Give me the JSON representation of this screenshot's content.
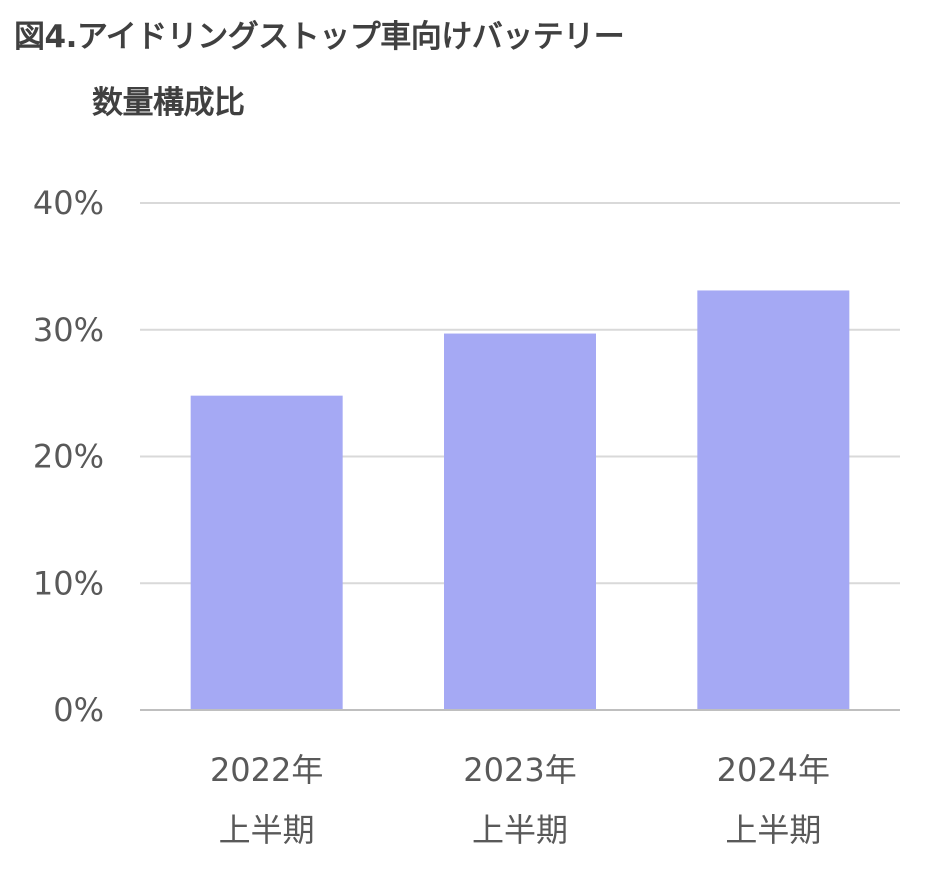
{
  "chart_data": {
    "type": "bar",
    "title": "図4.アイドリングストップ車向けバッテリー",
    "subtitle": "数量構成比",
    "categories": [
      [
        "2022年",
        "上半期"
      ],
      [
        "2023年",
        "上半期"
      ],
      [
        "2024年",
        "上半期"
      ]
    ],
    "values": [
      24.8,
      29.7,
      33.1
    ],
    "unit": "%",
    "ylim": [
      0,
      40
    ],
    "yticks": [
      0,
      10,
      20,
      30,
      40
    ],
    "ytick_labels": [
      "0%",
      "10%",
      "20%",
      "30%",
      "40%"
    ],
    "grid": true,
    "legend": "none",
    "colors": {
      "bar": "#a5a9f4",
      "grid": "#d9d9d9",
      "axis": "#bfbfbf",
      "text": "#595959",
      "title": "#404040"
    }
  }
}
